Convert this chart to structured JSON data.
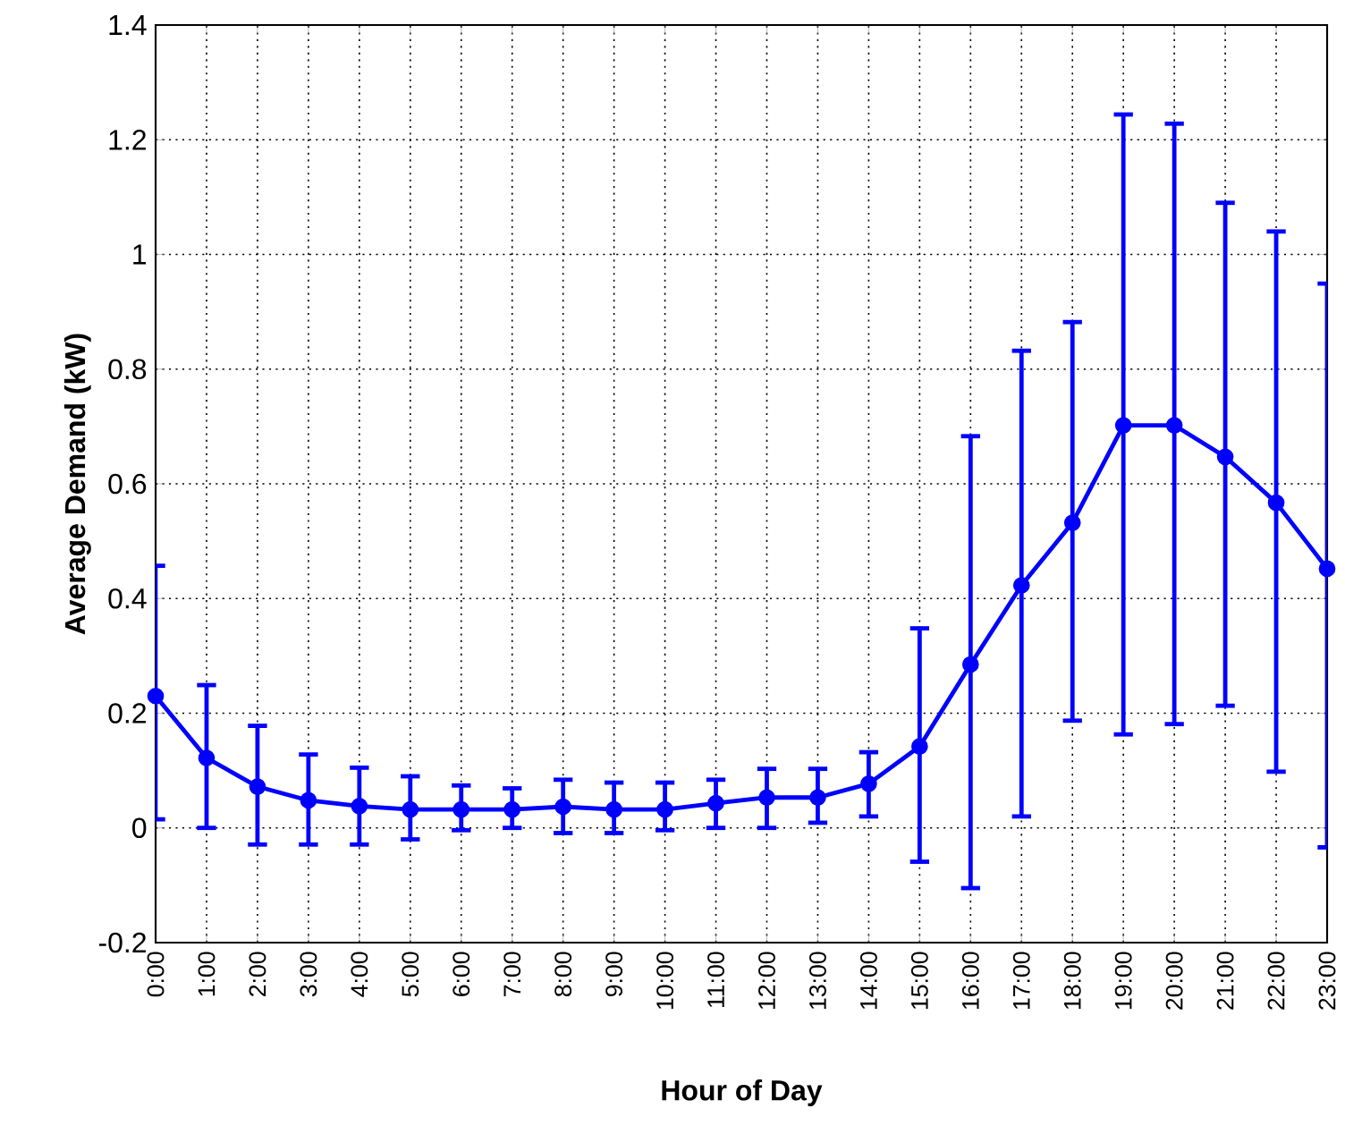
{
  "chart_data": {
    "type": "line",
    "xlabel": "Hour of Day",
    "ylabel": "Average Demand (kW)",
    "categories": [
      "0:00",
      "1:00",
      "2:00",
      "3:00",
      "4:00",
      "5:00",
      "6:00",
      "7:00",
      "8:00",
      "9:00",
      "10:00",
      "11:00",
      "12:00",
      "13:00",
      "14:00",
      "15:00",
      "16:00",
      "17:00",
      "18:00",
      "19:00",
      "20:00",
      "21:00",
      "22:00",
      "23:00"
    ],
    "series": [
      {
        "color": "#0000ff",
        "values": [
          0.23,
          0.122,
          0.072,
          0.048,
          0.038,
          0.032,
          0.032,
          0.032,
          0.037,
          0.032,
          0.032,
          0.043,
          0.053,
          0.053,
          0.077,
          0.142,
          0.285,
          0.423,
          0.532,
          0.702,
          0.702,
          0.647,
          0.567,
          0.452
        ],
        "errors": [
          [
            0.015,
            0.457
          ],
          [
            0.0,
            0.249
          ],
          [
            -0.029,
            0.178
          ],
          [
            -0.029,
            0.128
          ],
          [
            -0.029,
            0.105
          ],
          [
            -0.02,
            0.09
          ],
          [
            -0.004,
            0.074
          ],
          [
            0.0,
            0.069
          ],
          [
            -0.009,
            0.084
          ],
          [
            -0.009,
            0.079
          ],
          [
            -0.004,
            0.079
          ],
          [
            0.0,
            0.084
          ],
          [
            0.0,
            0.103
          ],
          [
            0.009,
            0.103
          ],
          [
            0.02,
            0.132
          ],
          [
            -0.059,
            0.348
          ],
          [
            -0.105,
            0.683
          ],
          [
            0.02,
            0.832
          ],
          [
            0.187,
            0.882
          ],
          [
            0.163,
            1.244
          ],
          [
            0.181,
            1.228
          ],
          [
            0.213,
            1.09
          ],
          [
            0.098,
            1.04
          ],
          [
            -0.034,
            0.949
          ]
        ]
      }
    ],
    "ylim": [
      -0.2,
      1.4
    ],
    "yticks": [
      -0.2,
      0,
      0.2,
      0.4,
      0.6,
      0.8,
      1,
      1.2,
      1.4
    ],
    "grid": true,
    "marker": "circle",
    "line_style": "solid"
  }
}
